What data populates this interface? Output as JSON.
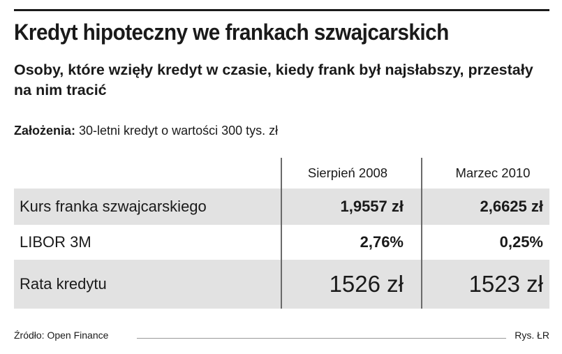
{
  "header": {
    "title": "Kredyt hipoteczny we frankach szwajcarskich",
    "subtitle": "Osoby, które wzięły kredyt w czasie, kiedy frank był najsłabszy, przestały na nim tracić"
  },
  "assumptions": {
    "label": "Założenia:",
    "text": " 30-letni kredyt o wartości 300 tys. zł"
  },
  "table": {
    "columns": [
      "Sierpień 2008",
      "Marzec 2010"
    ],
    "rows": [
      {
        "label": "Kurs franka szwajcarskiego",
        "values": [
          "1,9557 zł",
          "2,6625 zł"
        ]
      },
      {
        "label": "LIBOR 3M",
        "values": [
          "2,76%",
          "0,25%"
        ]
      },
      {
        "label": "Rata kredytu",
        "values": [
          "1526 zł",
          "1523 zł"
        ]
      }
    ]
  },
  "footer": {
    "source": "Źródło: Open Finance",
    "credit": "Rys. ŁR"
  },
  "colors": {
    "shaded_row": "#e2e2e2",
    "text": "#1a1a1a"
  }
}
